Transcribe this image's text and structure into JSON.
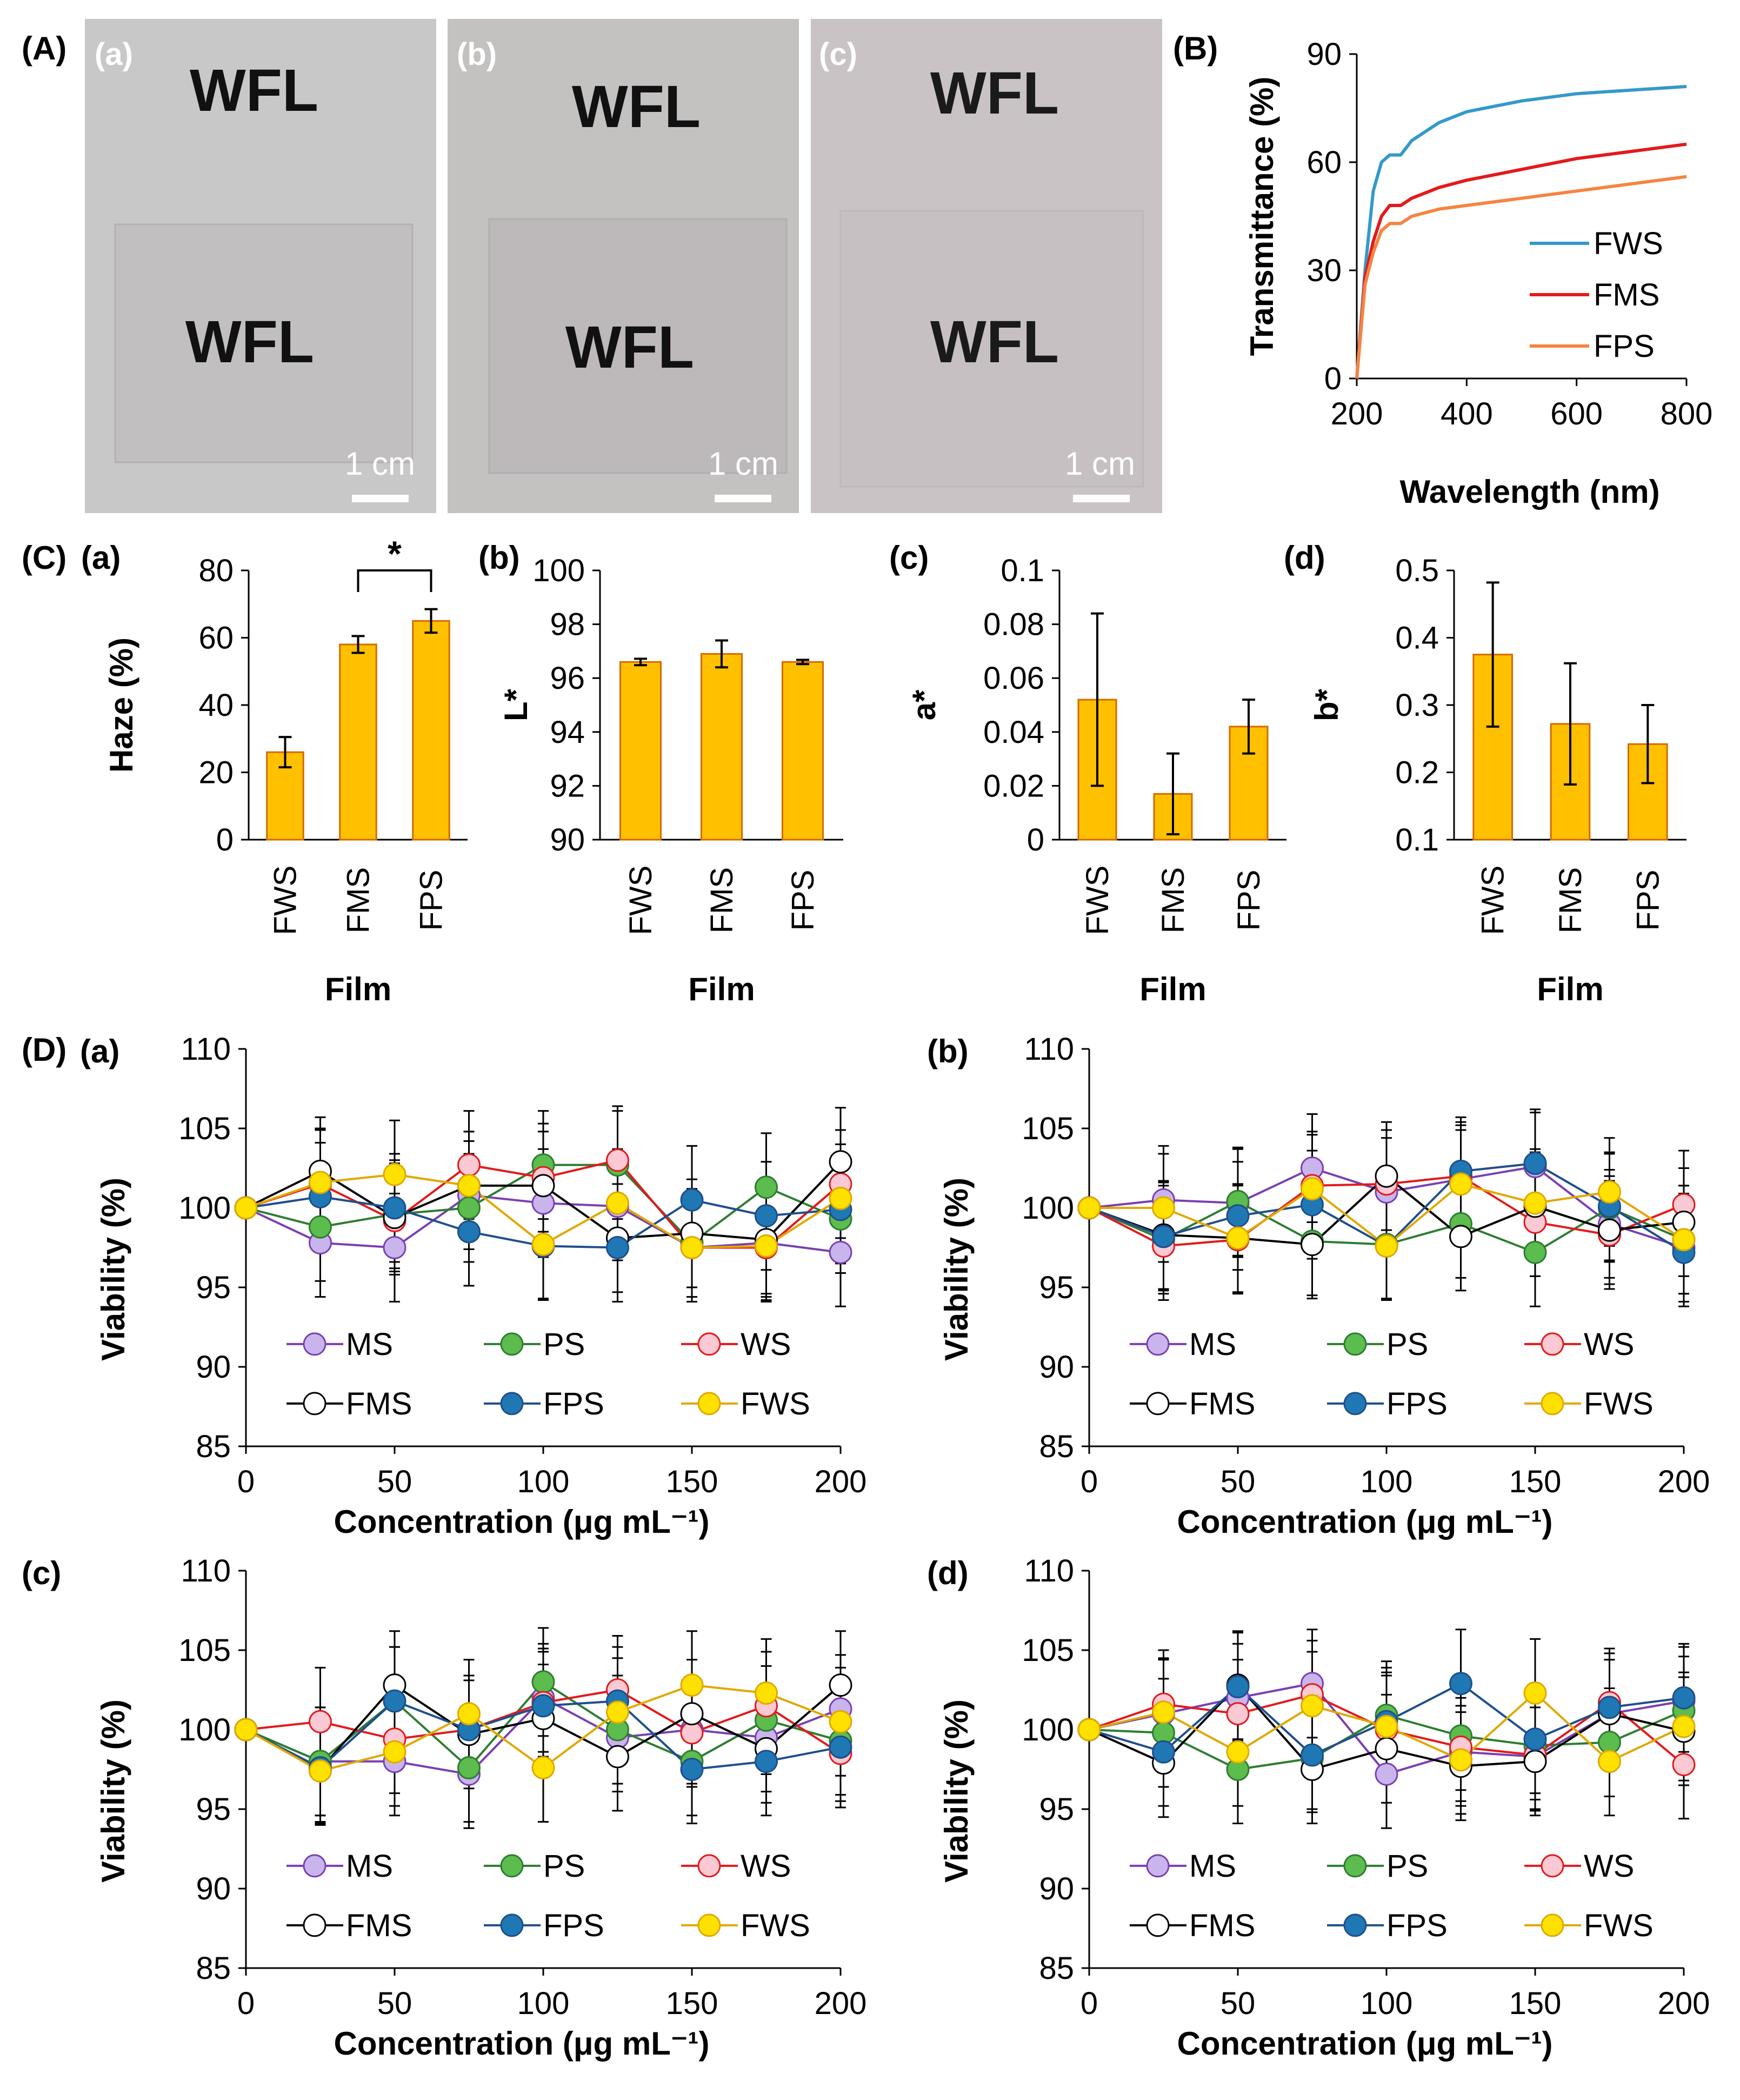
{
  "colors": {
    "FWS": "#3399cc",
    "FMS": "#e31a1c",
    "FPS": "#f58442",
    "bar": "#ffc000",
    "bar_edge": "#d36a00",
    "MS": "#c9b5ec",
    "PS": "#5cbc4d",
    "WS": "#fbc9d4",
    "FMS_marker": "#ffffff",
    "FPS_marker": "#1f78b4",
    "FWS_marker": "#ffe100",
    "MS_line": "#7a3fb3",
    "PS_line": "#2e7d32",
    "WS_line": "#e31a1c",
    "FMS_line": "#000000",
    "FPS_line": "#1f4e8c",
    "FWS_line": "#e0a800"
  },
  "panelA": {
    "label": "(A)",
    "photos": [
      {
        "label": "(a)",
        "text_top": "WFL",
        "text_bottom": "WFL",
        "scale": "1 cm"
      },
      {
        "label": "(b)",
        "text_top": "WFL",
        "text_bottom": "WFL",
        "scale": "1 cm"
      },
      {
        "label": "(c)",
        "text_top": "WFL",
        "text_bottom": "WFL",
        "scale": "1 cm"
      }
    ]
  },
  "panelC_label": "(C)",
  "panelD_label": "(D)",
  "chart_data": [
    {
      "panel": "(B)",
      "type": "line",
      "xlabel": "Wavelength (nm)",
      "ylabel": "Transmittance (%)",
      "xlim": [
        200,
        800
      ],
      "ylim": [
        0,
        90
      ],
      "xticks": [
        "200",
        "400",
        "600",
        "800"
      ],
      "yticks": [
        "0",
        "30",
        "60",
        "90"
      ],
      "legend": "bottom-right",
      "series": [
        {
          "name": "FWS",
          "x": [
            200,
            215,
            230,
            245,
            260,
            280,
            300,
            350,
            400,
            500,
            600,
            700,
            800
          ],
          "values": [
            0,
            30,
            52,
            60,
            62,
            62,
            66,
            71,
            74,
            77,
            79,
            80,
            81
          ]
        },
        {
          "name": "FMS",
          "x": [
            200,
            215,
            230,
            245,
            260,
            280,
            300,
            350,
            400,
            500,
            600,
            700,
            800
          ],
          "values": [
            0,
            28,
            38,
            45,
            48,
            48,
            50,
            53,
            55,
            58,
            61,
            63,
            65
          ]
        },
        {
          "name": "FPS",
          "x": [
            200,
            215,
            230,
            245,
            260,
            280,
            300,
            350,
            400,
            500,
            600,
            700,
            800
          ],
          "values": [
            0,
            26,
            35,
            41,
            43,
            43,
            45,
            47,
            48,
            50,
            52,
            54,
            56
          ]
        }
      ]
    },
    {
      "panel": "(a)",
      "type": "bar",
      "categories": [
        "FWS",
        "FMS",
        "FPS"
      ],
      "values": [
        26,
        58,
        65
      ],
      "errors": [
        4.5,
        2.5,
        3.5
      ],
      "ylabel": "Haze (%)",
      "xlabel": "Film",
      "ylim": [
        0,
        80
      ],
      "yticks": [
        "0",
        "20",
        "40",
        "60",
        "80"
      ],
      "annotation": "*"
    },
    {
      "panel": "(b)",
      "type": "bar",
      "categories": [
        "FWS",
        "FMS",
        "FPS"
      ],
      "values": [
        96.6,
        96.9,
        96.6
      ],
      "errors": [
        0.12,
        0.5,
        0.08
      ],
      "ylabel": "L*",
      "xlabel": "Film",
      "ylim": [
        90,
        100
      ],
      "yticks": [
        "90",
        "92",
        "94",
        "96",
        "98",
        "100"
      ]
    },
    {
      "panel": "(c)",
      "type": "bar",
      "categories": [
        "FWS",
        "FMS",
        "FPS"
      ],
      "values": [
        0.052,
        0.017,
        0.042
      ],
      "errors": [
        0.032,
        0.015,
        0.01
      ],
      "ylabel": "a*",
      "xlabel": "Film",
      "ylim": [
        0,
        0.1
      ],
      "yticks": [
        "0",
        "0.02",
        "0.04",
        "0.06",
        "0.08",
        "0.1"
      ]
    },
    {
      "panel": "(d)",
      "type": "bar",
      "categories": [
        "FWS",
        "FMS",
        "FPS"
      ],
      "values": [
        0.375,
        0.272,
        0.242
      ],
      "errors": [
        0.107,
        0.09,
        0.058
      ],
      "ylabel": "b*",
      "xlabel": "Film",
      "ylim": [
        0.1,
        0.5
      ],
      "yticks": [
        "0.1",
        "0.2",
        "0.3",
        "0.4",
        "0.5"
      ]
    },
    {
      "panel": "(a)",
      "type": "line",
      "xlabel": "Concentration (μg mL⁻¹)",
      "ylabel": "Viability (%)",
      "xlim": [
        0,
        200
      ],
      "ylim": [
        85,
        110
      ],
      "xticks": [
        "0",
        "50",
        "100",
        "150",
        "200"
      ],
      "yticks": [
        "85",
        "90",
        "95",
        "100",
        "105",
        "110"
      ],
      "x": [
        0,
        25,
        50,
        75,
        100,
        125,
        150,
        175,
        200
      ],
      "error": 3.4,
      "series": [
        {
          "name": "MS",
          "values": [
            100,
            97.8,
            97.5,
            100.8,
            100.3,
            100.1,
            97.5,
            97.8,
            97.2
          ]
        },
        {
          "name": "PS",
          "values": [
            100,
            98.8,
            99.6,
            100.0,
            102.7,
            102.7,
            97.8,
            101.3,
            99.3
          ]
        },
        {
          "name": "WS",
          "values": [
            100,
            101.5,
            99.2,
            102.7,
            101.9,
            103.0,
            97.5,
            97.5,
            101.5
          ]
        },
        {
          "name": "FMS",
          "values": [
            100,
            102.3,
            99.4,
            101.4,
            101.4,
            98.1,
            98.4,
            98.0,
            102.9
          ]
        },
        {
          "name": "FPS",
          "values": [
            100,
            100.7,
            100.0,
            98.5,
            97.6,
            97.5,
            100.5,
            99.5,
            99.9
          ]
        },
        {
          "name": "FWS",
          "values": [
            100,
            101.6,
            102.1,
            101.4,
            97.7,
            100.3,
            97.5,
            97.6,
            100.6
          ]
        }
      ]
    },
    {
      "panel": "(b)",
      "type": "line",
      "xlabel": "Concentration (μg mL⁻¹)",
      "ylabel": "Viability (%)",
      "xlim": [
        0,
        200
      ],
      "ylim": [
        85,
        110
      ],
      "xticks": [
        "0",
        "50",
        "100",
        "150",
        "200"
      ],
      "yticks": [
        "85",
        "90",
        "95",
        "100",
        "105",
        "110"
      ],
      "x": [
        0,
        25,
        50,
        75,
        100,
        125,
        150,
        175,
        200
      ],
      "error": 3.4,
      "series": [
        {
          "name": "MS",
          "values": [
            100,
            100.5,
            100.3,
            102.5,
            101.0,
            101.8,
            102.6,
            99.0,
            97.5
          ]
        },
        {
          "name": "PS",
          "values": [
            100,
            98.0,
            100.4,
            97.9,
            97.7,
            99.0,
            97.2,
            100.0,
            98.0
          ]
        },
        {
          "name": "WS",
          "values": [
            100,
            97.6,
            98.0,
            101.4,
            101.5,
            102.0,
            99.1,
            98.3,
            100.2
          ]
        },
        {
          "name": "FMS",
          "values": [
            100,
            98.3,
            98.1,
            97.7,
            102.0,
            98.2,
            100.1,
            98.6,
            99.1
          ]
        },
        {
          "name": "FPS",
          "values": [
            100,
            98.2,
            99.5,
            100.2,
            97.6,
            102.3,
            102.8,
            100.1,
            97.2
          ]
        },
        {
          "name": "FWS",
          "values": [
            100,
            100.0,
            98.1,
            101.2,
            97.6,
            101.5,
            100.3,
            101.0,
            98.0
          ]
        }
      ]
    },
    {
      "panel": "(c)",
      "type": "line",
      "xlabel": "Concentration (μg mL⁻¹)",
      "ylabel": "Viability (%)",
      "xlim": [
        0,
        200
      ],
      "ylim": [
        85,
        110
      ],
      "xticks": [
        "0",
        "50",
        "100",
        "150",
        "200"
      ],
      "yticks": [
        "85",
        "90",
        "95",
        "100",
        "105",
        "110"
      ],
      "x": [
        0,
        25,
        50,
        75,
        100,
        125,
        150,
        175,
        200
      ],
      "error": 3.4,
      "series": [
        {
          "name": "MS",
          "values": [
            100,
            98.0,
            98.0,
            97.2,
            102.0,
            99.5,
            100.0,
            99.5,
            101.3
          ]
        },
        {
          "name": "PS",
          "values": [
            100,
            98.0,
            101.8,
            97.6,
            103.0,
            100.0,
            98.0,
            100.6,
            99.3
          ]
        },
        {
          "name": "WS",
          "values": [
            100,
            100.5,
            99.4,
            100.0,
            101.7,
            102.5,
            99.8,
            101.5,
            98.5
          ]
        },
        {
          "name": "FMS",
          "values": [
            100,
            97.5,
            102.8,
            99.7,
            100.7,
            98.3,
            101.0,
            98.8,
            102.8
          ]
        },
        {
          "name": "FPS",
          "values": [
            100,
            97.6,
            101.8,
            100.0,
            101.5,
            101.8,
            97.5,
            98.0,
            98.9
          ]
        },
        {
          "name": "FWS",
          "values": [
            100,
            97.4,
            98.6,
            101.0,
            97.6,
            101.1,
            102.8,
            102.3,
            100.5
          ]
        }
      ]
    },
    {
      "panel": "(d)",
      "type": "line",
      "xlabel": "Concentration (μg mL⁻¹)",
      "ylabel": "Viability (%)",
      "xlim": [
        0,
        200
      ],
      "ylim": [
        85,
        110
      ],
      "xticks": [
        "0",
        "50",
        "100",
        "150",
        "200"
      ],
      "yticks": [
        "85",
        "90",
        "95",
        "100",
        "105",
        "110"
      ],
      "x": [
        0,
        25,
        50,
        75,
        100,
        125,
        150,
        175,
        200
      ],
      "error": 3.4,
      "series": [
        {
          "name": "MS",
          "values": [
            100,
            101.0,
            102.0,
            102.9,
            97.2,
            98.6,
            98.3,
            101.0,
            101.8
          ]
        },
        {
          "name": "PS",
          "values": [
            100,
            99.8,
            97.5,
            98.2,
            100.9,
            99.6,
            99.0,
            99.2,
            101.2
          ]
        },
        {
          "name": "WS",
          "values": [
            100,
            101.6,
            101.0,
            102.2,
            100.0,
            98.9,
            98.4,
            101.7,
            97.8
          ]
        },
        {
          "name": "FMS",
          "values": [
            100,
            97.9,
            102.8,
            97.5,
            98.8,
            97.7,
            98.0,
            101.0,
            99.9
          ]
        },
        {
          "name": "FPS",
          "values": [
            100,
            98.6,
            102.7,
            98.4,
            100.5,
            102.9,
            99.4,
            101.4,
            102.0
          ]
        },
        {
          "name": "FWS",
          "values": [
            100,
            101.1,
            98.6,
            101.5,
            100.2,
            98.1,
            102.3,
            98.0,
            100.2
          ]
        }
      ]
    }
  ]
}
